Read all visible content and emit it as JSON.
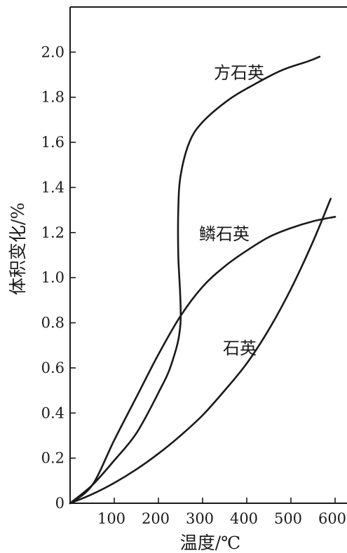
{
  "chart_data": {
    "type": "line",
    "title": "",
    "xlabel": "温度/℃",
    "ylabel": "体积变化/%",
    "xlim": [
      0,
      600
    ],
    "ylim": [
      0,
      2.2
    ],
    "x_ticks": [
      100,
      200,
      300,
      400,
      500,
      600
    ],
    "x_tick_labels": [
      "100",
      "200",
      "300",
      "400",
      "500",
      "600"
    ],
    "y_ticks": [
      0,
      0.2,
      0.4,
      0.6,
      0.8,
      1.0,
      1.2,
      1.4,
      1.6,
      1.8,
      2.0
    ],
    "y_tick_labels": [
      "0",
      "0.2",
      "0.4",
      "0.6",
      "0.8",
      "1.0",
      "1.2",
      "1.4",
      "1.6",
      "1.8",
      "2.0"
    ],
    "grid": false,
    "legend": "none",
    "series": [
      {
        "name": "方石英",
        "points": [
          [
            0,
            0
          ],
          [
            50,
            0.08
          ],
          [
            100,
            0.19
          ],
          [
            150,
            0.31
          ],
          [
            200,
            0.49
          ],
          [
            230,
            0.62
          ],
          [
            250,
            0.8
          ],
          [
            245,
            1.1
          ],
          [
            245,
            1.3
          ],
          [
            250,
            1.45
          ],
          [
            270,
            1.6
          ],
          [
            300,
            1.69
          ],
          [
            360,
            1.79
          ],
          [
            420,
            1.86
          ],
          [
            480,
            1.92
          ],
          [
            540,
            1.96
          ],
          [
            565,
            1.98
          ]
        ]
      },
      {
        "name": "鳞石英",
        "points": [
          [
            0,
            0
          ],
          [
            50,
            0.08
          ],
          [
            100,
            0.28
          ],
          [
            150,
            0.47
          ],
          [
            200,
            0.66
          ],
          [
            250,
            0.83
          ],
          [
            300,
            0.96
          ],
          [
            350,
            1.05
          ],
          [
            400,
            1.12
          ],
          [
            450,
            1.18
          ],
          [
            500,
            1.22
          ],
          [
            550,
            1.25
          ],
          [
            600,
            1.27
          ]
        ]
      },
      {
        "name": "石英",
        "points": [
          [
            0,
            0
          ],
          [
            50,
            0.04
          ],
          [
            100,
            0.09
          ],
          [
            150,
            0.15
          ],
          [
            200,
            0.22
          ],
          [
            250,
            0.3
          ],
          [
            300,
            0.39
          ],
          [
            350,
            0.5
          ],
          [
            400,
            0.62
          ],
          [
            450,
            0.77
          ],
          [
            500,
            0.95
          ],
          [
            550,
            1.16
          ],
          [
            590,
            1.35
          ]
        ]
      }
    ],
    "curve_labels": [
      "方石英",
      "鳞石英",
      "石英"
    ]
  }
}
